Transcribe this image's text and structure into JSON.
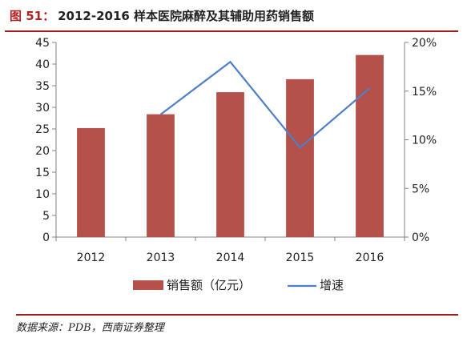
{
  "figure": {
    "label": "图 51：",
    "title": "2012-2016 样本医院麻醉及其辅助用药销售额"
  },
  "source": "数据来源：PDB，西南证券整理",
  "colors": {
    "bar": "#b5514b",
    "line": "#4f7fc6",
    "axis": "#808080",
    "frame_rule": "#a0201e"
  },
  "chart_data": {
    "type": "bar",
    "title": "2012-2016 样本医院麻醉及其辅助用药销售额",
    "categories": [
      "2012",
      "2013",
      "2014",
      "2015",
      "2016"
    ],
    "series": [
      {
        "name": "销售额（亿元）",
        "type": "bar",
        "axis": "left",
        "values": [
          25.2,
          28.4,
          33.5,
          36.5,
          42.1
        ]
      },
      {
        "name": "增速",
        "type": "line",
        "axis": "right",
        "values": [
          null,
          0.126,
          0.18,
          0.092,
          0.153
        ]
      }
    ],
    "ylim_left": [
      0,
      45
    ],
    "yticks_left": [
      "0",
      "5",
      "10",
      "15",
      "20",
      "25",
      "30",
      "35",
      "40",
      "45"
    ],
    "ylim_right": [
      0,
      0.2
    ],
    "yticks_right": [
      "0%",
      "5%",
      "10%",
      "15%",
      "20%"
    ],
    "legend_position": "bottom",
    "grid": false
  }
}
